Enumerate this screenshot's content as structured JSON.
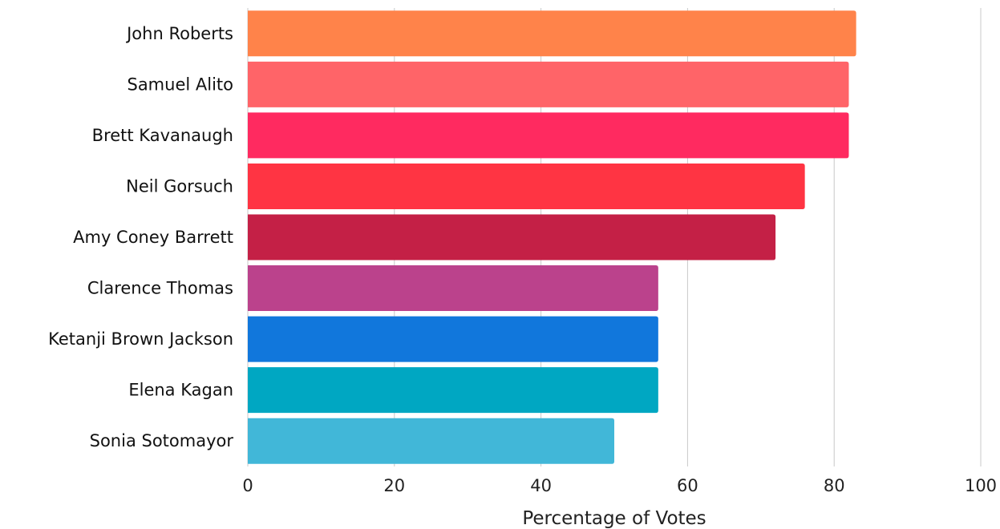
{
  "chart_data": {
    "type": "bar",
    "orientation": "horizontal",
    "categories": [
      "John Roberts",
      "Samuel Alito",
      "Brett Kavanaugh",
      "Neil Gorsuch",
      "Amy Coney Barrett",
      "Clarence Thomas",
      "Ketanji Brown Jackson",
      "Elena Kagan",
      "Sonia Sotomayor"
    ],
    "values": [
      83,
      82,
      82,
      76,
      72,
      56,
      56,
      56,
      50
    ],
    "colors": [
      "#ff834a",
      "#ff6468",
      "#ff2a60",
      "#ff3443",
      "#c42046",
      "#bb428c",
      "#1177dc",
      "#00a7c2",
      "#41b7d8"
    ],
    "xlabel": "Percentage of Votes",
    "ylabel": "",
    "title": "",
    "xlim": [
      0,
      100
    ],
    "xticks": [
      "0",
      "20",
      "40",
      "60",
      "80",
      "100"
    ],
    "grid": "vertical",
    "legend": "none"
  }
}
